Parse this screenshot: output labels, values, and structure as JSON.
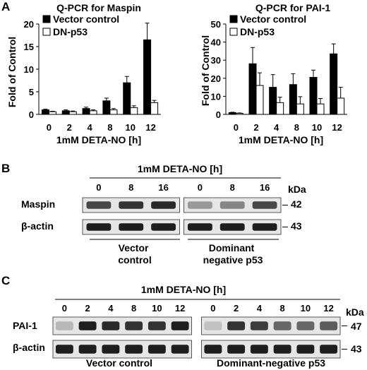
{
  "panels": {
    "a": "A",
    "b": "B",
    "c": "C"
  },
  "chart_data": [
    {
      "type": "bar",
      "title": "Q-PCR for Maspin",
      "xlabel": "1mM DETA-NO [h]",
      "ylabel": "Fold of Control",
      "ylim": [
        0,
        20
      ],
      "yticks": [
        0,
        5,
        10,
        15,
        20
      ],
      "categories": [
        "0",
        "2",
        "4",
        "8",
        "10",
        "12"
      ],
      "legend_position": "top-left",
      "series": [
        {
          "name": "Vector control",
          "color": "#000000",
          "values": [
            1.0,
            0.8,
            1.3,
            3.0,
            7.0,
            16.5
          ],
          "errors": [
            0.15,
            0.2,
            0.3,
            0.6,
            1.4,
            3.7
          ]
        },
        {
          "name": "DN-p53",
          "color": "#ffffff",
          "values": [
            0.6,
            0.6,
            0.8,
            1.0,
            1.5,
            2.6
          ],
          "errors": [
            0.1,
            0.15,
            0.2,
            0.3,
            0.4,
            0.5
          ]
        }
      ]
    },
    {
      "type": "bar",
      "title": "Q-PCR for PAI-1",
      "xlabel": "1mM DETA-NO [h]",
      "ylabel": "Fold of Control",
      "ylim": [
        0,
        50
      ],
      "yticks": [
        0,
        10,
        20,
        30,
        40,
        50
      ],
      "categories": [
        "0",
        "2",
        "4",
        "8",
        "10",
        "12"
      ],
      "legend_position": "top-left",
      "series": [
        {
          "name": "Vector control",
          "color": "#000000",
          "values": [
            1.0,
            28.0,
            15.0,
            16.5,
            20.5,
            33.5
          ],
          "errors": [
            0.2,
            9.0,
            7.0,
            6.0,
            4.0,
            5.5
          ]
        },
        {
          "name": "DN-p53",
          "color": "#ffffff",
          "values": [
            0.6,
            16.0,
            6.5,
            5.8,
            5.8,
            9.0
          ],
          "errors": [
            0.2,
            7.0,
            3.0,
            4.0,
            3.0,
            6.0
          ]
        }
      ]
    }
  ],
  "blot_b": {
    "treatment": "1mM DETA-NO [h]",
    "lanes": [
      "0",
      "8",
      "16",
      "0",
      "8",
      "16"
    ],
    "kda_label": "kDa",
    "rows": [
      {
        "label": "Maspin",
        "kda": "42",
        "intensity": [
          0.75,
          0.85,
          0.9,
          0.35,
          0.45,
          0.75
        ]
      },
      {
        "label": "β-actin",
        "kda": "43",
        "intensity": [
          0.95,
          0.95,
          0.95,
          0.95,
          0.95,
          0.95
        ]
      }
    ],
    "group1": "Vector control",
    "group2": "Dominant negative p53"
  },
  "blot_c": {
    "treatment": "1mM DETA-NO [h]",
    "lanes": [
      "0",
      "2",
      "4",
      "8",
      "10",
      "12",
      "0",
      "2",
      "4",
      "8",
      "10",
      "12"
    ],
    "kda_label": "kDa",
    "rows": [
      {
        "label": "PAI-1",
        "kda": "47",
        "intensity": [
          0.2,
          0.95,
          0.9,
          0.85,
          0.85,
          0.95,
          0.15,
          0.85,
          0.8,
          0.6,
          0.6,
          0.65
        ]
      },
      {
        "label": "β-actin",
        "kda": "43",
        "intensity": [
          0.95,
          0.95,
          0.95,
          0.95,
          0.95,
          0.95,
          0.95,
          0.95,
          0.95,
          0.95,
          0.95,
          0.95
        ]
      }
    ],
    "group1": "Vector control",
    "group2": "Dominant-negative p53"
  }
}
